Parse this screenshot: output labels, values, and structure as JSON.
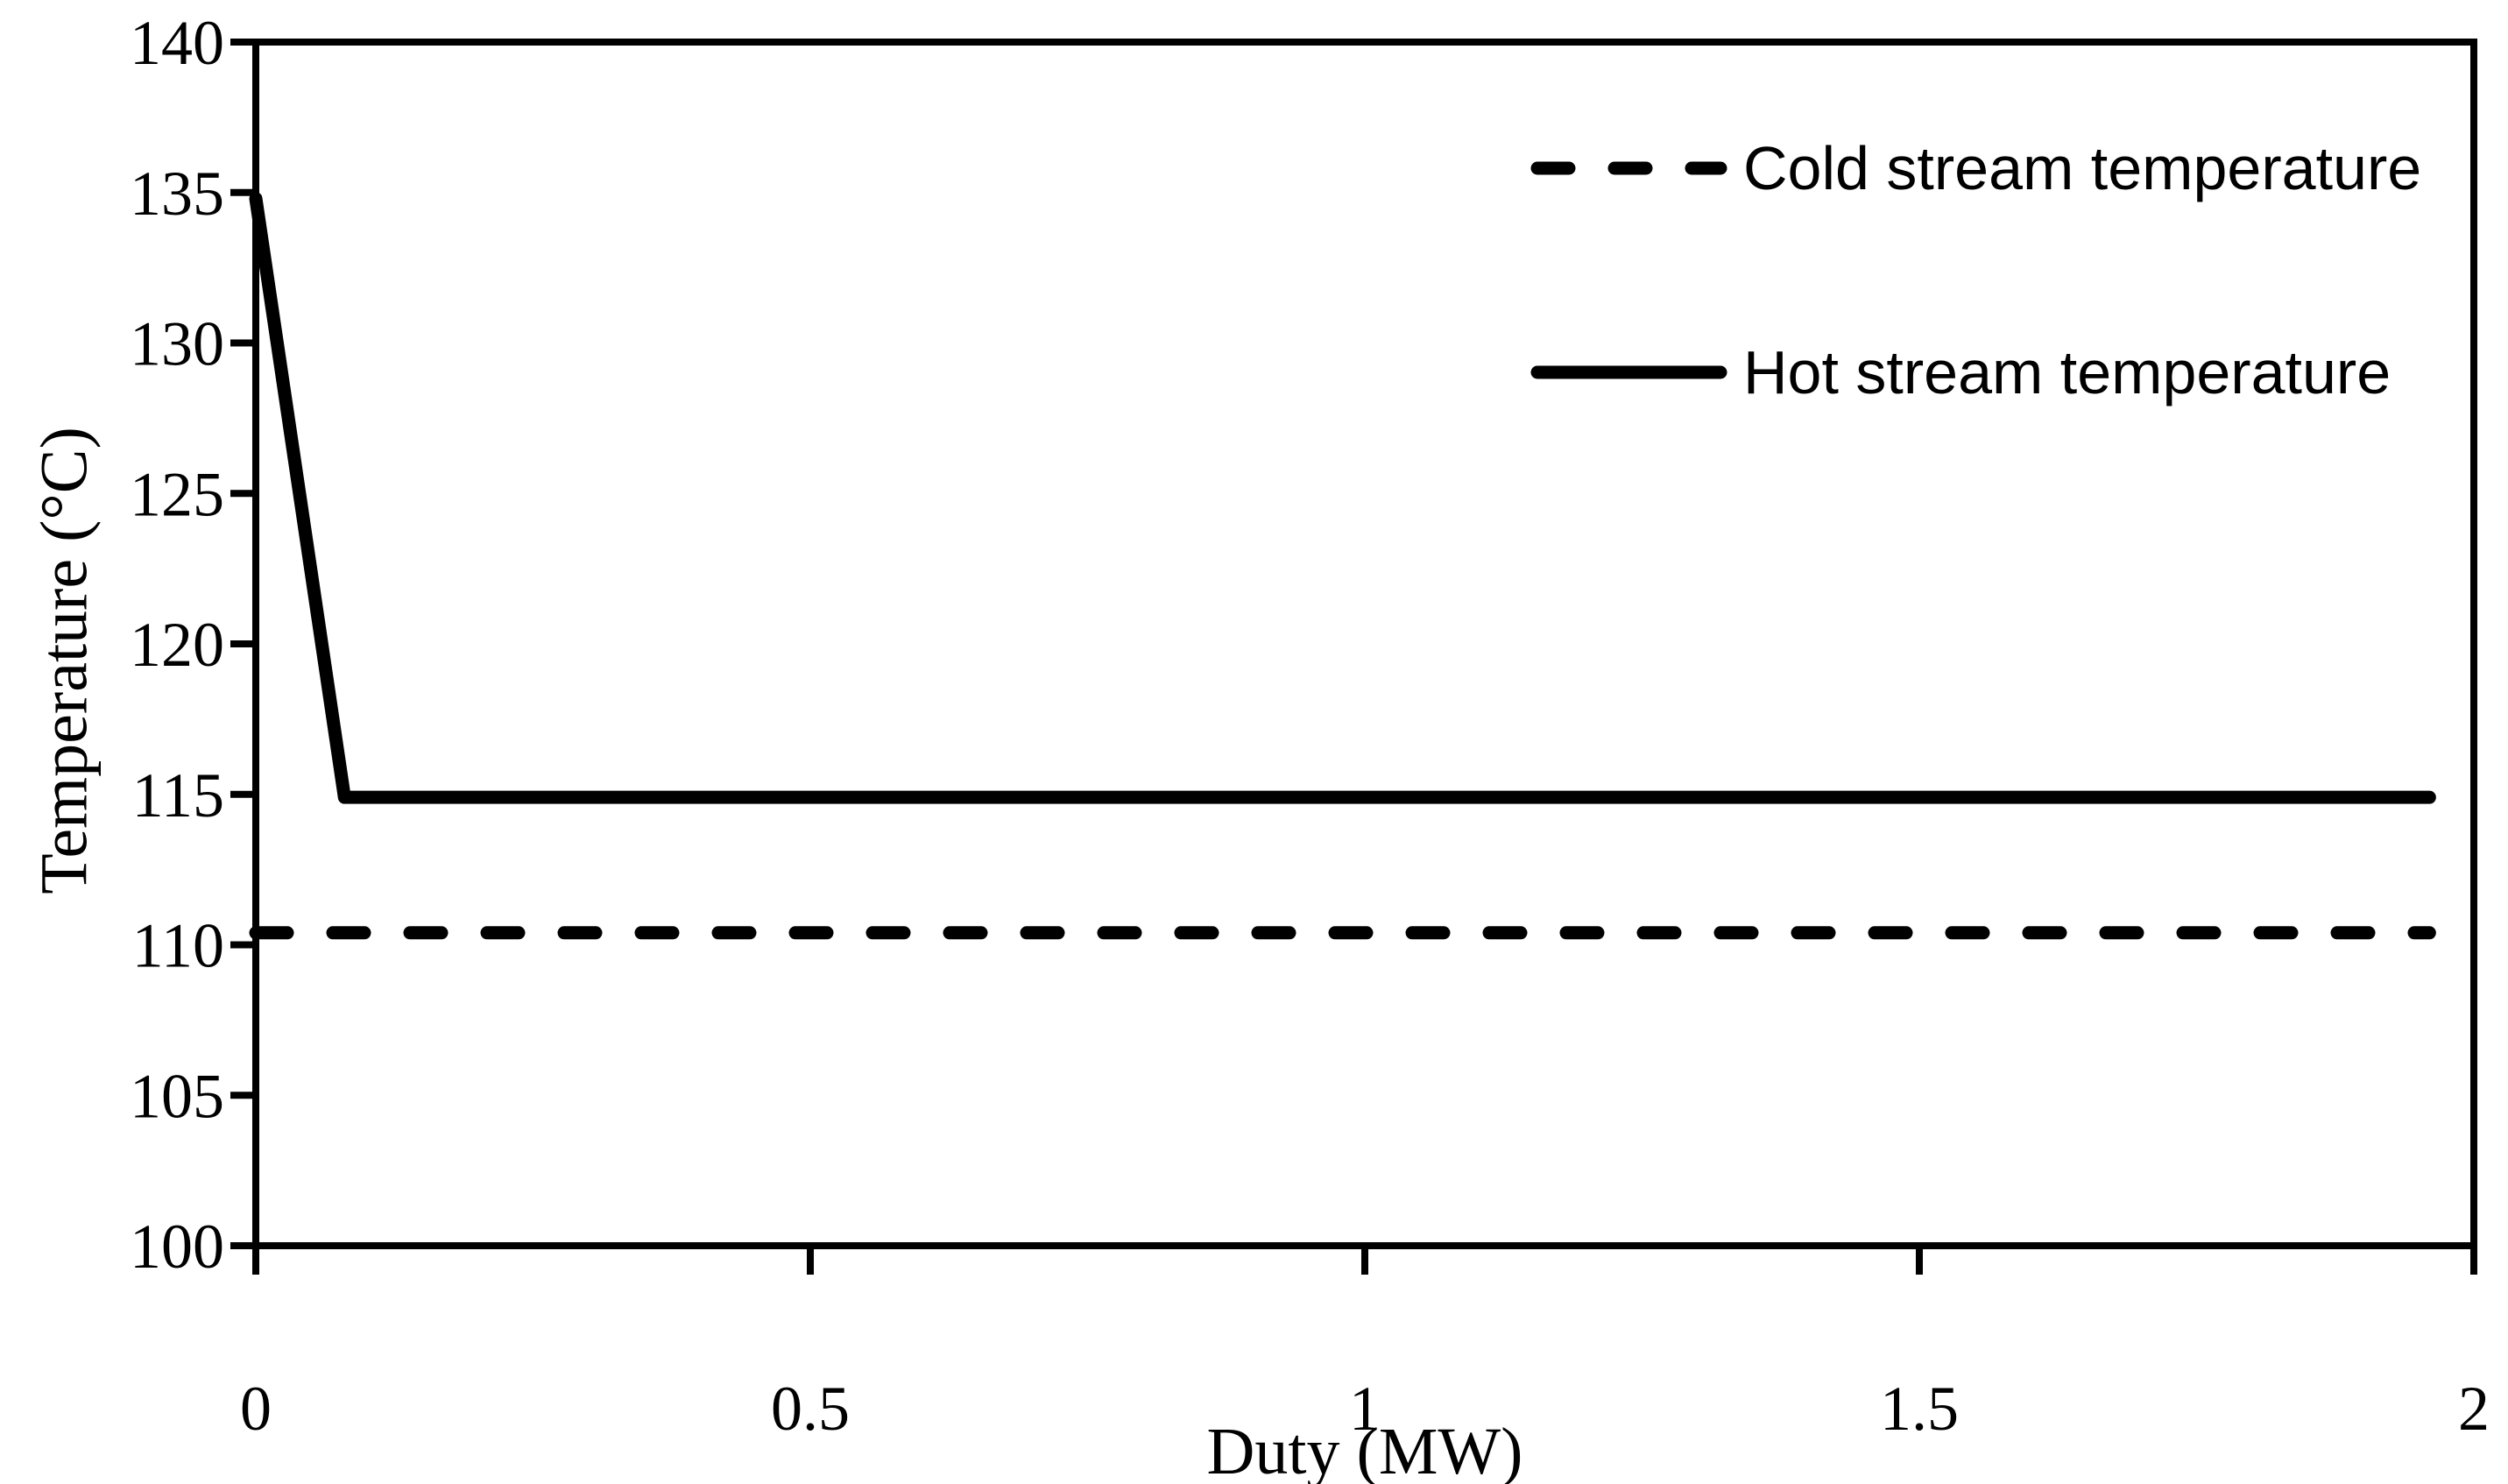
{
  "figure": {
    "background_color": "#ffffff",
    "line_color": "#000000"
  },
  "chart_data": {
    "type": "line",
    "title": "",
    "xlabel": "Duty (MW)",
    "ylabel": "Temperature (°C)",
    "xlim": [
      0,
      2
    ],
    "ylim": [
      100,
      140
    ],
    "grid": false,
    "legend_position": "upper-right-inside",
    "xticks": {
      "values": [
        0,
        0.5,
        1,
        1.5,
        2
      ],
      "labels": [
        "0",
        "0.5",
        "1",
        "1.5",
        "2"
      ]
    },
    "yticks": {
      "values": [
        100,
        105,
        110,
        115,
        120,
        125,
        130,
        135,
        140
      ],
      "labels": [
        "100",
        "105",
        "110",
        "115",
        "120",
        "125",
        "130",
        "135",
        "140"
      ]
    },
    "series": [
      {
        "name": "Cold stream temperature",
        "style": "dashed",
        "color": "#000000",
        "x": [
          0,
          1.96
        ],
        "y": [
          110.4,
          110.4
        ]
      },
      {
        "name": "Hot stream temperature",
        "style": "solid",
        "color": "#000000",
        "x": [
          0,
          0.08,
          1.96
        ],
        "y": [
          134.8,
          114.9,
          114.9
        ]
      }
    ]
  }
}
